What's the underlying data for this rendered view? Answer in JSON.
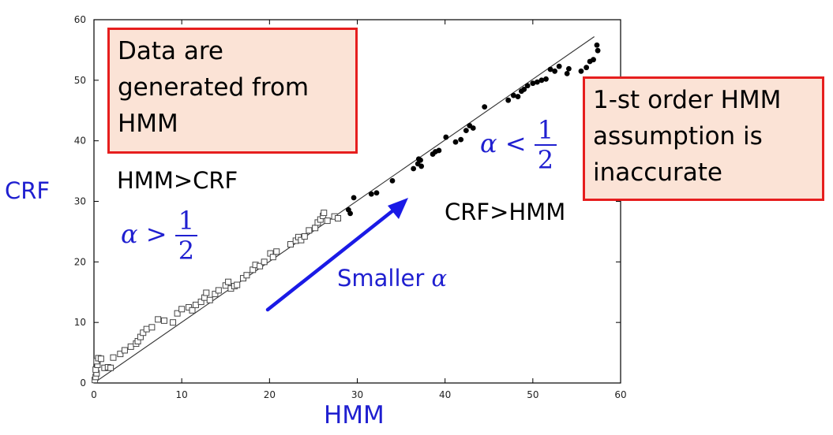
{
  "chart_data": {
    "type": "scatter",
    "xlabel": "HMM",
    "ylabel": "CRF",
    "xlim": [
      0,
      60
    ],
    "ylim": [
      0,
      60
    ],
    "x_ticks": [
      "0",
      "10",
      "20",
      "30",
      "40",
      "50",
      "60"
    ],
    "y_ticks": [
      "0",
      "10",
      "20",
      "30",
      "40",
      "50",
      "60"
    ],
    "grid": false,
    "diagonal_line": {
      "x": [
        0,
        57
      ],
      "y": [
        0,
        57.2
      ]
    },
    "series": [
      {
        "marker": "open-square",
        "points": [
          [
            0.1,
            0.5
          ],
          [
            0.2,
            1.0
          ],
          [
            0.3,
            1.6
          ],
          [
            0.2,
            2.2
          ],
          [
            0.4,
            3.0
          ],
          [
            0.3,
            3.6
          ],
          [
            0.5,
            4.1
          ],
          [
            0.8,
            4.0
          ],
          [
            1.2,
            2.5
          ],
          [
            1.6,
            2.6
          ],
          [
            1.9,
            2.5
          ],
          [
            2.2,
            4.2
          ],
          [
            3.0,
            4.8
          ],
          [
            3.5,
            5.4
          ],
          [
            4.2,
            6.0
          ],
          [
            4.8,
            6.5
          ],
          [
            5.0,
            6.9
          ],
          [
            5.3,
            7.6
          ],
          [
            5.6,
            8.3
          ],
          [
            6.0,
            8.9
          ],
          [
            6.6,
            9.2
          ],
          [
            7.3,
            10.5
          ],
          [
            8.0,
            10.3
          ],
          [
            9.0,
            10.0
          ],
          [
            9.5,
            11.5
          ],
          [
            10.0,
            12.2
          ],
          [
            10.8,
            12.5
          ],
          [
            11.2,
            12.0
          ],
          [
            11.6,
            12.9
          ],
          [
            12.2,
            13.4
          ],
          [
            12.6,
            14.1
          ],
          [
            12.8,
            14.9
          ],
          [
            13.2,
            13.7
          ],
          [
            13.8,
            14.7
          ],
          [
            14.2,
            15.3
          ],
          [
            15.0,
            16.1
          ],
          [
            15.3,
            16.7
          ],
          [
            15.6,
            15.6
          ],
          [
            16.0,
            16.0
          ],
          [
            16.3,
            16.2
          ],
          [
            17.0,
            17.3
          ],
          [
            17.4,
            17.8
          ],
          [
            18.1,
            18.7
          ],
          [
            18.4,
            19.5
          ],
          [
            18.9,
            19.3
          ],
          [
            19.4,
            20.0
          ],
          [
            20.1,
            21.4
          ],
          [
            20.4,
            20.8
          ],
          [
            20.8,
            21.7
          ],
          [
            22.4,
            22.9
          ],
          [
            23.0,
            23.5
          ],
          [
            23.3,
            24.1
          ],
          [
            23.6,
            23.6
          ],
          [
            24.0,
            24.2
          ],
          [
            24.5,
            25.2
          ],
          [
            25.2,
            25.6
          ],
          [
            25.5,
            26.5
          ],
          [
            25.8,
            27.0
          ],
          [
            26.1,
            27.6
          ],
          [
            26.2,
            28.1
          ],
          [
            26.6,
            26.8
          ],
          [
            27.4,
            27.5
          ],
          [
            27.8,
            27.2
          ]
        ]
      },
      {
        "marker": "filled-circle",
        "points": [
          [
            29.0,
            28.6
          ],
          [
            29.2,
            28.0
          ],
          [
            29.6,
            30.6
          ],
          [
            31.6,
            31.2
          ],
          [
            32.2,
            31.4
          ],
          [
            34.0,
            33.4
          ],
          [
            36.4,
            35.4
          ],
          [
            36.9,
            36.2
          ],
          [
            37.0,
            37.0
          ],
          [
            37.2,
            36.8
          ],
          [
            37.3,
            35.8
          ],
          [
            38.6,
            37.8
          ],
          [
            38.9,
            38.2
          ],
          [
            39.3,
            38.4
          ],
          [
            40.1,
            40.6
          ],
          [
            41.2,
            39.8
          ],
          [
            41.8,
            40.2
          ],
          [
            42.4,
            41.7
          ],
          [
            42.8,
            42.5
          ],
          [
            43.2,
            42.1
          ],
          [
            44.5,
            45.6
          ],
          [
            47.2,
            46.7
          ],
          [
            47.8,
            47.5
          ],
          [
            48.3,
            47.3
          ],
          [
            48.7,
            48.2
          ],
          [
            49.0,
            48.5
          ],
          [
            49.4,
            49.1
          ],
          [
            50.0,
            49.5
          ],
          [
            50.5,
            49.7
          ],
          [
            51.0,
            50.0
          ],
          [
            51.5,
            50.2
          ],
          [
            52.0,
            51.8
          ],
          [
            52.5,
            51.5
          ],
          [
            53.0,
            52.3
          ],
          [
            53.9,
            51.1
          ],
          [
            54.1,
            51.9
          ],
          [
            55.5,
            51.5
          ],
          [
            56.1,
            52.1
          ],
          [
            56.5,
            53.1
          ],
          [
            56.9,
            53.4
          ],
          [
            57.3,
            55.8
          ],
          [
            57.4,
            54.9
          ]
        ]
      }
    ]
  },
  "callouts": {
    "generated": {
      "lines": [
        "Data are",
        "generated from",
        "HMM"
      ]
    },
    "assumption": {
      "lines": [
        "1-st order HMM",
        "assumption is",
        "inaccurate"
      ]
    }
  },
  "labels": {
    "hmm_gt_crf": "HMM>CRF",
    "crf_gt_hmm": "CRF>HMM",
    "alpha_gt": {
      "lhs": "α >",
      "num": "1",
      "den": "2"
    },
    "alpha_lt": {
      "lhs": "α <",
      "num": "1",
      "den": "2"
    },
    "smaller": {
      "word": "Smaller",
      "symbol": "α"
    }
  },
  "colors": {
    "annotation_blue": "#1f1fd0",
    "callout_fill": "#fbe3d6",
    "callout_border": "#e61e1e",
    "arrow": "#1a1ae6"
  }
}
